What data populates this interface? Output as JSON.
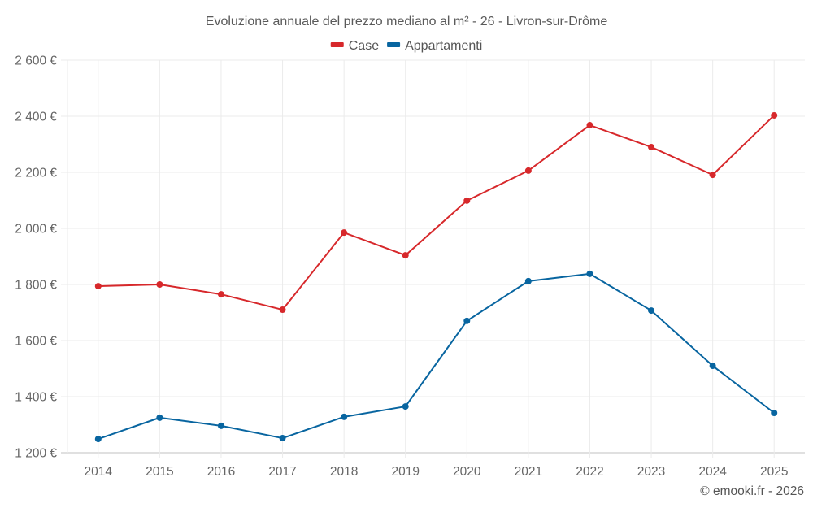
{
  "chart_data": {
    "type": "line",
    "title": "Evoluzione annuale del prezzo mediano al m² - 26 - Livron-sur-Drôme",
    "xlabel": "",
    "ylabel": "",
    "categories": [
      "2014",
      "2015",
      "2016",
      "2017",
      "2018",
      "2019",
      "2020",
      "2021",
      "2022",
      "2023",
      "2024",
      "2025"
    ],
    "series": [
      {
        "name": "Case",
        "color": "#d7282b",
        "values": [
          1794,
          1800,
          1765,
          1710,
          1985,
          1904,
          2099,
          2206,
          2368,
          2290,
          2191,
          2403
        ]
      },
      {
        "name": "Appartamenti",
        "color": "#0865a0",
        "values": [
          1249,
          1325,
          1296,
          1252,
          1328,
          1365,
          1670,
          1812,
          1838,
          1707,
          1510,
          1342
        ]
      }
    ],
    "ylim": [
      1200,
      2600
    ],
    "yticks": [
      1200,
      1400,
      1600,
      1800,
      2000,
      2200,
      2400,
      2600
    ],
    "ytick_labels": [
      "1 200 €",
      "1 400 €",
      "1 600 €",
      "1 800 €",
      "2 000 €",
      "2 200 €",
      "2 400 €",
      "2 600 €"
    ],
    "grid": true,
    "legend_position": "top-center",
    "credit": "© emooki.fr - 2026"
  }
}
